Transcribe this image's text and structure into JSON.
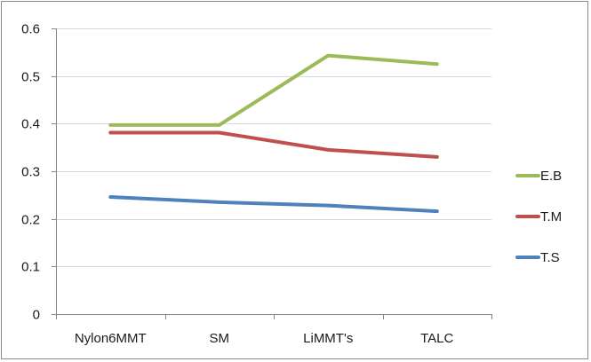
{
  "chart_data": {
    "type": "line",
    "title": "",
    "xlabel": "",
    "ylabel": "",
    "categories": [
      "Nylon6MMT",
      "SM",
      "LiMMT's",
      "TALC"
    ],
    "ylim": [
      0,
      0.6
    ],
    "yticks": [
      0,
      0.1,
      0.2,
      0.3,
      0.4,
      0.5,
      0.6
    ],
    "ytick_labels": [
      "0",
      "0.1",
      "0.2",
      "0.3",
      "0.4",
      "0.5",
      "0.6"
    ],
    "grid": true,
    "legend_position": "right",
    "series": [
      {
        "name": "E.B",
        "color": "#9bbb59",
        "values": [
          0.397,
          0.397,
          0.543,
          0.525
        ]
      },
      {
        "name": "T.M",
        "color": "#c0504d",
        "values": [
          0.381,
          0.381,
          0.345,
          0.33
        ]
      },
      {
        "name": "T.S",
        "color": "#4f81bd",
        "values": [
          0.246,
          0.235,
          0.228,
          0.216
        ]
      }
    ]
  }
}
